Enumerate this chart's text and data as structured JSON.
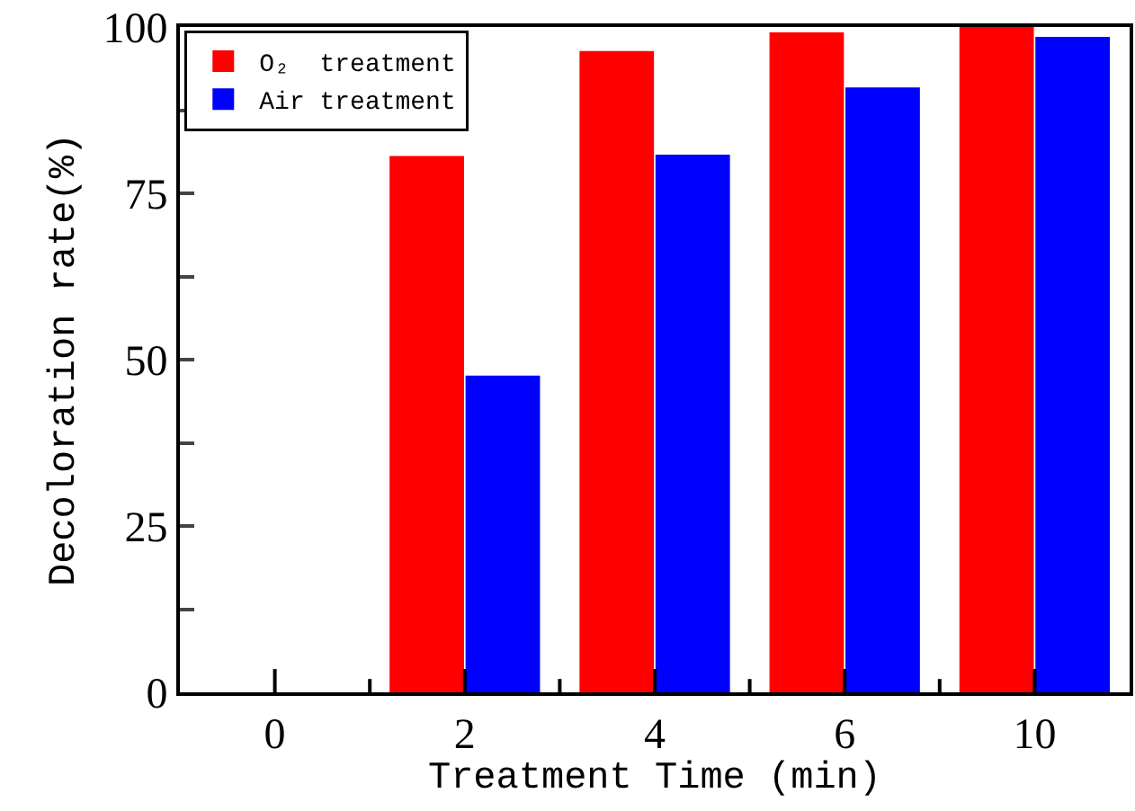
{
  "chart_data": {
    "type": "bar",
    "xlabel": "Treatment Time (min)",
    "ylabel": "Decoloration rate(%)",
    "categories": [
      "0",
      "2",
      "4",
      "6",
      "10"
    ],
    "series": [
      {
        "name": "O₂  treatment",
        "color": "#ff0000",
        "values": [
          0,
          80.6,
          96.4,
          99.2,
          100
        ]
      },
      {
        "name": "Air treatment",
        "color": "#0000ff",
        "values": [
          0,
          47.6,
          80.8,
          90.9,
          98.5
        ]
      }
    ],
    "ylim": [
      0,
      100
    ],
    "yticks": [
      0,
      {
        "value": 12.5,
        "label": null
      },
      25,
      {
        "value": 37.5,
        "label": null
      },
      50,
      {
        "value": 62.5,
        "label": null
      },
      75,
      {
        "value": 87.5,
        "label": null
      },
      100
    ],
    "grid": false,
    "legend": "top left"
  }
}
